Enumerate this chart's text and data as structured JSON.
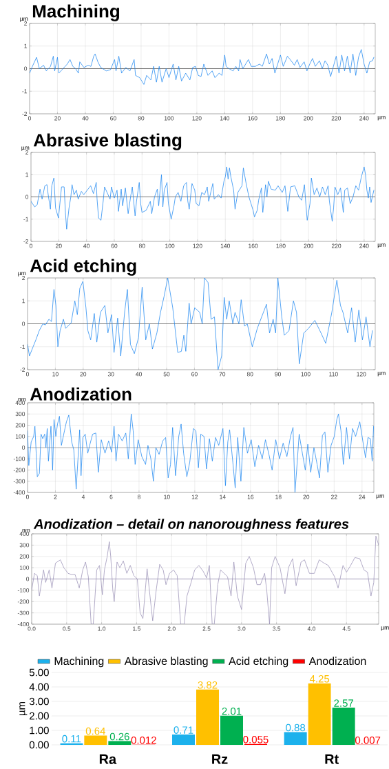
{
  "chart_data": [
    {
      "type": "line",
      "title": "Machining",
      "xlabel": "µm",
      "ylabel": "µm",
      "color": "#1e87f0",
      "grid": true,
      "xlim": [
        0,
        248
      ],
      "ylim": [
        -2,
        2
      ],
      "xticks": [
        0,
        20,
        40,
        60,
        80,
        100,
        120,
        140,
        160,
        180,
        200,
        220,
        240
      ],
      "yticks": [
        -2,
        -1,
        0,
        1,
        2
      ],
      "ref_lines": [
        {
          "axis": "y",
          "value": 0,
          "color": "#555555"
        }
      ],
      "x": [
        0,
        2,
        5,
        7,
        10,
        12,
        15,
        17,
        18,
        20,
        21,
        24,
        27,
        29,
        31,
        33,
        35,
        36,
        39,
        42,
        44,
        46,
        47,
        49,
        51,
        55,
        58,
        61,
        62,
        64,
        66,
        69,
        72,
        75,
        76,
        79,
        82,
        84,
        87,
        89,
        91,
        93,
        95,
        98,
        100,
        103,
        105,
        107,
        109,
        112,
        115,
        117,
        119,
        121,
        123,
        125,
        128,
        131,
        133,
        136,
        138,
        140,
        141,
        143,
        146,
        148,
        150,
        151,
        153,
        157,
        159,
        162,
        165,
        167,
        170,
        172,
        174,
        176,
        178,
        180,
        182,
        185,
        187,
        190,
        192,
        194,
        197,
        199,
        201,
        203,
        205,
        208,
        210,
        212,
        214,
        216,
        218,
        220,
        222,
        224,
        226,
        228,
        230,
        232,
        234,
        236,
        238,
        240,
        242,
        244,
        246,
        247
      ],
      "values": [
        -0.2,
        0.1,
        0.5,
        0,
        0.15,
        -0.1,
        0.1,
        0.55,
        -0.1,
        0.5,
        -0.2,
        0,
        0.2,
        0.4,
        0.1,
        0,
        -0.2,
        0.3,
        0.05,
        0.15,
        0.1,
        0.55,
        0.65,
        0.3,
        0.05,
        -0.1,
        -0.05,
        0.4,
        -0.1,
        0.55,
        -0.2,
        0.05,
        -0.1,
        0.4,
        -0.3,
        -0.4,
        -0.7,
        -0.3,
        -0.5,
        0.1,
        -0.6,
        0.1,
        -0.6,
        0,
        -0.4,
        0.2,
        -0.5,
        0.1,
        -0.55,
        -0.2,
        -0.5,
        0.05,
        0.1,
        -0.3,
        -0.35,
        0.2,
        -0.3,
        -0.1,
        -0.4,
        -0.2,
        -0.3,
        0.6,
        0.1,
        0,
        -0.1,
        0.1,
        -0.1,
        0.4,
        0,
        0.4,
        0.1,
        0.1,
        0.2,
        0.1,
        0.65,
        0.2,
        0.45,
        -0.2,
        0.2,
        0.6,
        0.1,
        0.55,
        0.4,
        0.15,
        0.4,
        0.05,
        0.3,
        -0.1,
        0.2,
        0.45,
        0.1,
        0.35,
        0,
        0.35,
        0.15,
        -0.35,
        0.1,
        0.55,
        -0.2,
        0.6,
        -0.1,
        0.55,
        -0.2,
        0.65,
        -0.3,
        0.5,
        0.85,
        0.2,
        -0.2,
        0.3,
        0.35,
        0.5
      ]
    },
    {
      "type": "line",
      "title": "Abrasive blasting",
      "xlabel": "µm",
      "ylabel": "µm",
      "color": "#1e87f0",
      "grid": true,
      "xlim": [
        0,
        248
      ],
      "ylim": [
        -2,
        2
      ],
      "xticks": [
        0,
        20,
        40,
        60,
        80,
        100,
        120,
        140,
        160,
        180,
        200,
        220,
        240
      ],
      "yticks": [
        -2,
        -1,
        0,
        1,
        2
      ],
      "ref_lines": [
        {
          "axis": "y",
          "value": 0,
          "color": "#555555"
        }
      ],
      "x": [
        0,
        2.7,
        4.5,
        6.5,
        8,
        10,
        11.5,
        12.4,
        14,
        15,
        16.5,
        17.7,
        19.8,
        22,
        23.9,
        24.8,
        25.7,
        27.4,
        28.7,
        29.6,
        31,
        32.7,
        34,
        36.3,
        38,
        43,
        45,
        47,
        47.6,
        48.7,
        50.4,
        52,
        53,
        57,
        58,
        60,
        62,
        63,
        65,
        66,
        68,
        70,
        72,
        73,
        75,
        76,
        78,
        79,
        80,
        83,
        86,
        87,
        89,
        91,
        92,
        94,
        95,
        96,
        98,
        99,
        101,
        103,
        104,
        106,
        108,
        110,
        112,
        113,
        114,
        116,
        118,
        119,
        121,
        123,
        125,
        127,
        128,
        131,
        132,
        135,
        137,
        139,
        140,
        141,
        142,
        143,
        144,
        146,
        147,
        149,
        152,
        153,
        155,
        157,
        158,
        160,
        161,
        163,
        164,
        166,
        167,
        169,
        170,
        171,
        173,
        176,
        178,
        181,
        183,
        185,
        187,
        190,
        193,
        195,
        197,
        198,
        199,
        201,
        202,
        204,
        206,
        208,
        210,
        212,
        214,
        215,
        217,
        218,
        219,
        221,
        223,
        225,
        226,
        228,
        230,
        232,
        234,
        236,
        238,
        240,
        241,
        242,
        243,
        244,
        245,
        247
      ],
      "values": [
        -0.2,
        -0.45,
        -0.35,
        0.35,
        -0.1,
        0.5,
        0.55,
        0.1,
        -0.55,
        0.5,
        0.85,
        -0.5,
        -0.95,
        0.45,
        0.45,
        -0.7,
        -1.45,
        -0.5,
        0,
        0.55,
        0.1,
        0.3,
        -0.1,
        0.25,
        0.1,
        0.5,
        0.15,
        0.65,
        -0.1,
        -0.95,
        -1.05,
        -0.2,
        0.45,
        -0.1,
        0.45,
        -0.05,
        0.3,
        -0.65,
        0.35,
        -0.4,
        0.4,
        -0.75,
        0.1,
        0.45,
        -0.85,
        -0.2,
        0.65,
        -0.3,
        -0.7,
        -0.6,
        -0.2,
        -0.75,
        0,
        0.35,
        -0.4,
        1.0,
        -0.45,
        0.3,
        0.65,
        -0.3,
        -1.0,
        -0.4,
        0,
        0.2,
        -0.2,
        0.5,
        0.65,
        -0.2,
        -0.55,
        0.6,
        0.3,
        -0.3,
        -0.4,
        0.2,
        0.1,
        0.45,
        -0.2,
        0.6,
        -0.1,
        0.1,
        -0.05,
        0.7,
        0.9,
        1.35,
        0.8,
        1.3,
        0.9,
        0.3,
        -0.55,
        0.2,
        0.5,
        1.3,
        0.6,
        0,
        -0.2,
        -0.6,
        -0.9,
        -0.6,
        -0.15,
        0.4,
        -0.7,
        0.55,
        0,
        0.7,
        0.35,
        0.3,
        0.5,
        0.2,
        0.5,
        -0.65,
        0.45,
        0.5,
        0,
        -0.15,
        0.55,
        -0.3,
        -1.05,
        -0.3,
        0.85,
        0.1,
        0.4,
        0,
        0.45,
        0.1,
        0.5,
        -0.2,
        -1.1,
        -0.5,
        0.45,
        0.1,
        0.4,
        -0.7,
        0.3,
        0.4,
        -0.3,
        0,
        0.5,
        0.3,
        0.9,
        1.35,
        1.0,
        0.3,
        -0.05,
        0.45,
        -0.25,
        0.3
      ]
    },
    {
      "type": "line",
      "title": "Acid etching",
      "xlabel": "µm",
      "ylabel": "µm",
      "color": "#1e87f0",
      "grid": true,
      "xlim": [
        0,
        125
      ],
      "ylim": [
        -2,
        2
      ],
      "xticks": [
        0,
        10,
        20,
        30,
        40,
        50,
        60,
        70,
        80,
        90,
        100,
        110,
        120
      ],
      "yticks": [
        -2,
        -1,
        0,
        1,
        2
      ],
      "ref_lines": [
        {
          "axis": "y",
          "value": 0,
          "color": "#555555"
        }
      ],
      "x": [
        0,
        0.7,
        2,
        3,
        4.2,
        5.5,
        6.4,
        7.7,
        8.6,
        9.5,
        10.2,
        10.9,
        11.7,
        12.9,
        13.7,
        15.7,
        17,
        17.9,
        18.8,
        19.9,
        21,
        21.7,
        22.7,
        24,
        24.9,
        26.2,
        27.8,
        28.9,
        30.2,
        31.1,
        32.4,
        33.5,
        34.9,
        35.9,
        37,
        38.4,
        39.9,
        41.2,
        42.5,
        43.8,
        44.9,
        46.5,
        47.8,
        49.1,
        50.4,
        52.2,
        54,
        55.3,
        56.2,
        56.9,
        58.1,
        58.8,
        60.1,
        61.9,
        62.8,
        63.6,
        64.9,
        66,
        67.2,
        68.5,
        69.8,
        70.7,
        71.6,
        72.5,
        73.8,
        74.6,
        76,
        76.8,
        78,
        79,
        80.8,
        82.6,
        84.8,
        85.9,
        87,
        88.3,
        89.2,
        90,
        91.4,
        92.3,
        94,
        95.6,
        96.7,
        97.7,
        99.3,
        101,
        103.3,
        105.5,
        107.2,
        109.4,
        111.2,
        112.5,
        113.4,
        115.1,
        116.5,
        117.8,
        119.1,
        120.4,
        121.7,
        123.1,
        124
      ],
      "values": [
        -0.9,
        -1.4,
        -1.0,
        -0.7,
        -0.3,
        0,
        -0.05,
        0.2,
        0.1,
        1.5,
        0.8,
        -1.0,
        -0.3,
        0.2,
        -0.2,
        0.05,
        1.0,
        0.4,
        1.55,
        1.85,
        0.7,
        -0.3,
        -0.7,
        0.45,
        -0.8,
        0.5,
        0.8,
        -0.4,
        0.4,
        -1.25,
        0.25,
        -1.4,
        0.5,
        1.5,
        -0.9,
        -1.3,
        -0.6,
        1.6,
        -0.7,
        0,
        -1.1,
        -0.4,
        0.5,
        1.2,
        2.0,
        0.7,
        -1.25,
        -1.2,
        -0.5,
        -1.2,
        0.9,
        0,
        0.7,
        0.5,
        0,
        2.0,
        1.8,
        0.2,
        0.3,
        -2.0,
        -1.4,
        1.15,
        0.2,
        1.0,
        0,
        0.5,
        0,
        1.05,
        -0.1,
        0,
        -1.0,
        -0.2,
        0.5,
        0.85,
        -0.4,
        0.2,
        -0.4,
        2.0,
        0.3,
        -0.5,
        -0.3,
        1.0,
        0.5,
        -1.75,
        -0.4,
        -0.2,
        0.15,
        -0.4,
        -0.85,
        0.5,
        1.9,
        0.8,
        0.5,
        -0.4,
        0.7,
        -0.8,
        0.6,
        -0.7,
        0.3,
        -1.0,
        -0.3
      ]
    },
    {
      "type": "line",
      "title": "Anodization",
      "xlabel": "µm",
      "ylabel": "nm",
      "color": "#1e87f0",
      "grid": true,
      "xlim": [
        0,
        24.85
      ],
      "ylim": [
        -400,
        400
      ],
      "xticks": [
        0,
        2,
        4,
        6,
        8,
        10,
        12,
        14,
        16,
        18,
        20,
        22,
        24
      ],
      "yticks": [
        -400,
        -300,
        -200,
        -100,
        0,
        100,
        200,
        300,
        400
      ],
      "ref_lines": [
        {
          "axis": "y",
          "value": 0,
          "color": "#555555"
        }
      ],
      "x": [
        0,
        0.09,
        0.26,
        0.44,
        0.53,
        0.62,
        0.7,
        0.85,
        0.97,
        1.09,
        1.23,
        1.32,
        1.41,
        1.5,
        1.68,
        1.8,
        1.9,
        2.03,
        2.15,
        2.29,
        2.43,
        2.65,
        2.79,
        2.96,
        3.17,
        3.32,
        3.49,
        3.62,
        3.74,
        3.84,
        3.97,
        4.14,
        4.32,
        4.5,
        4.67,
        4.9,
        5.08,
        5.29,
        5.56,
        5.82,
        6.03,
        6.21,
        6.35,
        6.53,
        6.79,
        7.05,
        7.23,
        7.44,
        7.58,
        7.72,
        7.94,
        8.2,
        8.47,
        8.64,
        8.85,
        9.03,
        9.21,
        9.44,
        9.7,
        9.91,
        10.09,
        10.26,
        10.41,
        10.62,
        10.85,
        11.02,
        11.2,
        11.43,
        11.64,
        11.9,
        12.08,
        12.26,
        12.43,
        12.66,
        12.84,
        13.05,
        13.26,
        13.49,
        13.72,
        14.02,
        14.2,
        14.37,
        14.5,
        14.73,
        14.9,
        15.08,
        15.31,
        15.52,
        15.78,
        16.05,
        16.31,
        16.58,
        16.84,
        17.07,
        17.32,
        17.55,
        17.81,
        18.08,
        18.34,
        18.61,
        18.87,
        19.05,
        19.19,
        19.31,
        19.49,
        19.72,
        19.93,
        20.11,
        20.32,
        20.55,
        20.78,
        20.95,
        21.16,
        21.34,
        21.55,
        21.78,
        22.01,
        22.19,
        22.31,
        22.49,
        22.66,
        22.89,
        23.1,
        23.32,
        23.54,
        23.84,
        24.07,
        24.25,
        24.43,
        24.6,
        24.73,
        24.83
      ],
      "values": [
        150,
        -160,
        50,
        100,
        190,
        -50,
        -260,
        -230,
        120,
        80,
        120,
        0,
        170,
        -120,
        190,
        -200,
        250,
        100,
        210,
        280,
        20,
        150,
        230,
        290,
        50,
        -20,
        -370,
        -100,
        160,
        -250,
        90,
        120,
        -50,
        40,
        120,
        130,
        -220,
        70,
        -50,
        60,
        -40,
        190,
        -120,
        120,
        60,
        130,
        -100,
        300,
        150,
        -150,
        70,
        -80,
        -150,
        20,
        -100,
        -300,
        0,
        -60,
        60,
        90,
        -270,
        -150,
        180,
        -250,
        100,
        210,
        -50,
        -260,
        -130,
        170,
        150,
        -180,
        120,
        100,
        -190,
        80,
        -120,
        90,
        20,
        170,
        -340,
        50,
        160,
        -130,
        -360,
        90,
        -300,
        180,
        -50,
        70,
        -170,
        20,
        -100,
        70,
        -60,
        -200,
        70,
        -100,
        40,
        -80,
        100,
        180,
        -400,
        -200,
        120,
        -50,
        -200,
        30,
        -220,
        0,
        -150,
        -270,
        110,
        140,
        -220,
        20,
        100,
        250,
        300,
        150,
        -150,
        180,
        -100,
        170,
        100,
        230,
        50,
        -90,
        90,
        80,
        -120,
        190
      ]
    },
    {
      "type": "line",
      "title": "Anodization – detail on nanoroughness features",
      "xlabel": "µm",
      "ylabel": "nm",
      "color": "#9a90b6",
      "grid": true,
      "xlim": [
        0,
        4.96
      ],
      "ylim": [
        -400,
        400
      ],
      "xticks": [
        {
          "value": 0,
          "label": "0.0"
        },
        0.5,
        {
          "value": 1,
          "label": "1.0"
        },
        1.5,
        {
          "value": 2,
          "label": "2.0"
        },
        2.5,
        {
          "value": 3,
          "label": "3.0"
        },
        3.5,
        {
          "value": 4,
          "label": "4.0"
        },
        4.5
      ],
      "yticks": [
        -400,
        -300,
        -200,
        -100,
        0,
        100,
        200,
        300,
        400
      ],
      "ref_lines": [
        {
          "axis": "y",
          "value": 0,
          "color": "#8a80a8"
        }
      ],
      "x": [
        0,
        0.04,
        0.08,
        0.11,
        0.17,
        0.2,
        0.25,
        0.29,
        0.34,
        0.41,
        0.46,
        0.52,
        0.57,
        0.62,
        0.68,
        0.73,
        0.77,
        0.81,
        0.85,
        0.88,
        0.93,
        0.97,
        1.01,
        1.04,
        1.08,
        1.11,
        1.13,
        1.16,
        1.18,
        1.22,
        1.26,
        1.31,
        1.36,
        1.41,
        1.46,
        1.51,
        1.55,
        1.59,
        1.65,
        1.7,
        1.73,
        1.78,
        1.83,
        1.88,
        1.92,
        1.97,
        2.03,
        2.08,
        2.13,
        2.18,
        2.22,
        2.27,
        2.33,
        2.39,
        2.45,
        2.5,
        2.54,
        2.58,
        2.61,
        2.66,
        2.7,
        2.75,
        2.8,
        2.85,
        2.89,
        2.94,
        3.0,
        3.06,
        3.11,
        3.17,
        3.22,
        3.27,
        3.33,
        3.36,
        3.4,
        3.43,
        3.48,
        3.55,
        3.62,
        3.67,
        3.73,
        3.78,
        3.85,
        3.9,
        3.97,
        4.04,
        4.11,
        4.18,
        4.24,
        4.33,
        4.38,
        4.45,
        4.5,
        4.55,
        4.62,
        4.69,
        4.75,
        4.8,
        4.85,
        4.89,
        4.92,
        4.96
      ],
      "values": [
        -100,
        50,
        30,
        -150,
        80,
        -30,
        80,
        -80,
        140,
        170,
        100,
        50,
        40,
        40,
        -80,
        80,
        150,
        20,
        -400,
        -400,
        80,
        120,
        -140,
        80,
        200,
        330,
        200,
        -100,
        -200,
        150,
        100,
        160,
        50,
        120,
        30,
        0,
        -300,
        -350,
        90,
        -200,
        -370,
        -100,
        130,
        80,
        -50,
        50,
        80,
        30,
        -400,
        -400,
        -150,
        -50,
        80,
        120,
        70,
        10,
        120,
        -400,
        -400,
        -50,
        80,
        50,
        20,
        -150,
        150,
        -150,
        -270,
        140,
        200,
        100,
        -50,
        -50,
        50,
        -100,
        -400,
        100,
        200,
        100,
        -130,
        100,
        180,
        -60,
        150,
        170,
        50,
        50,
        170,
        140,
        120,
        20,
        -80,
        120,
        60,
        110,
        190,
        180,
        80,
        60,
        -150,
        -30,
        380,
        300
      ]
    },
    {
      "type": "bar",
      "ylabel": "µm",
      "categories": [
        "Ra",
        "Rz",
        "Rt"
      ],
      "grid": "y",
      "legend": "top",
      "ylim": [
        0,
        5
      ],
      "yticks": [
        {
          "value": 0,
          "label": "0.00"
        },
        {
          "value": 1,
          "label": "1.00"
        },
        {
          "value": 2,
          "label": "2.00"
        },
        {
          "value": 3,
          "label": "3.00"
        },
        {
          "value": 4,
          "label": "4.00"
        },
        {
          "value": 5,
          "label": "5.00"
        }
      ],
      "series": [
        {
          "name": "Machining",
          "color": "#1cb1ec",
          "values": [
            0.11,
            0.71,
            0.88
          ],
          "value_labels": [
            "0.11",
            "0.71",
            "0.88"
          ]
        },
        {
          "name": "Abrasive blasting",
          "color": "#ffc000",
          "values": [
            0.64,
            3.82,
            4.25
          ],
          "value_labels": [
            "0.64",
            "3.82",
            "4.25"
          ]
        },
        {
          "name": "Acid etching",
          "color": "#00b050",
          "values": [
            0.26,
            2.01,
            2.57
          ],
          "value_labels": [
            "0.26",
            "2.01",
            "2.57"
          ]
        },
        {
          "name": "Anodization",
          "color": "#ff0000",
          "values": [
            0.012,
            0.055,
            0.007
          ],
          "value_labels": [
            "0.012",
            "0.055",
            "0.007"
          ]
        }
      ]
    }
  ]
}
